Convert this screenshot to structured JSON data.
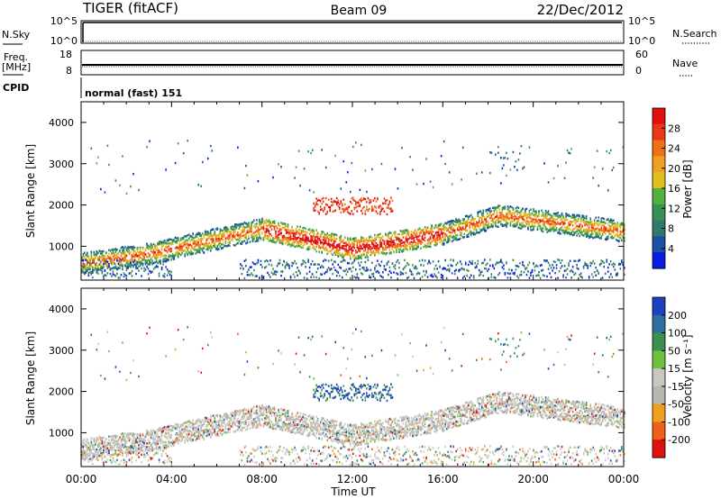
{
  "header": {
    "left": "TIGER (fitACF)",
    "center": "Beam 09",
    "right": "22/Dec/2012"
  },
  "panels": {
    "nsky": {
      "left_label": "N.Sky",
      "right_label": "N.Search",
      "ticks_left": [
        "10^5",
        "10^0"
      ],
      "ticks_right": [
        "10^5",
        "10^0"
      ]
    },
    "freq": {
      "left_label": "Freq.",
      "left_unit": "[MHz]",
      "right_label": "Nave",
      "ticks_left": [
        "18",
        "8"
      ],
      "ticks_right": [
        "60",
        "0"
      ]
    },
    "cpid": {
      "label": "CPID",
      "text": "normal (fast) 151"
    }
  },
  "colors": {
    "power": [
      "#0a1ae0",
      "#1c4fa6",
      "#2f7a6a",
      "#3a9050",
      "#52b040",
      "#e0c020",
      "#f0a020",
      "#f07018",
      "#e83818",
      "#e01010"
    ],
    "velocity": [
      "#e01010",
      "#f06018",
      "#f0a020",
      "#b8b8b0",
      "#c8c8c0",
      "#70c040",
      "#3a9050",
      "#2f6fa0",
      "#1c40c0"
    ]
  },
  "chart_data": [
    {
      "type": "heatmap",
      "ylabel": "Slant Range [km]",
      "xlabel": "",
      "x_ticks": [
        "00:00",
        "04:00",
        "08:00",
        "12:00",
        "16:00",
        "20:00",
        "00:00"
      ],
      "xlim": [
        0,
        24
      ],
      "ylim": [
        180,
        4500
      ],
      "y_ticks": [
        1000,
        2000,
        3000,
        4000
      ],
      "colorbar": {
        "label": "Power [dB]",
        "ticks": [
          "4",
          "8",
          "12",
          "16",
          "20",
          "24",
          "28"
        ],
        "range": [
          0,
          30
        ]
      }
    },
    {
      "type": "heatmap",
      "ylabel": "Slant Range [km]",
      "xlabel": "Time UT",
      "x_ticks": [
        "00:00",
        "04:00",
        "08:00",
        "12:00",
        "16:00",
        "20:00",
        "00:00"
      ],
      "xlim": [
        0,
        24
      ],
      "ylim": [
        180,
        4500
      ],
      "y_ticks": [
        1000,
        2000,
        3000,
        4000
      ],
      "colorbar": {
        "label": "Velocity [m s⁻¹]",
        "ticks": [
          "200",
          "100",
          "50",
          "15",
          "-15",
          "-50",
          "-100",
          "-200"
        ],
        "range": [
          -250,
          250
        ]
      }
    }
  ]
}
